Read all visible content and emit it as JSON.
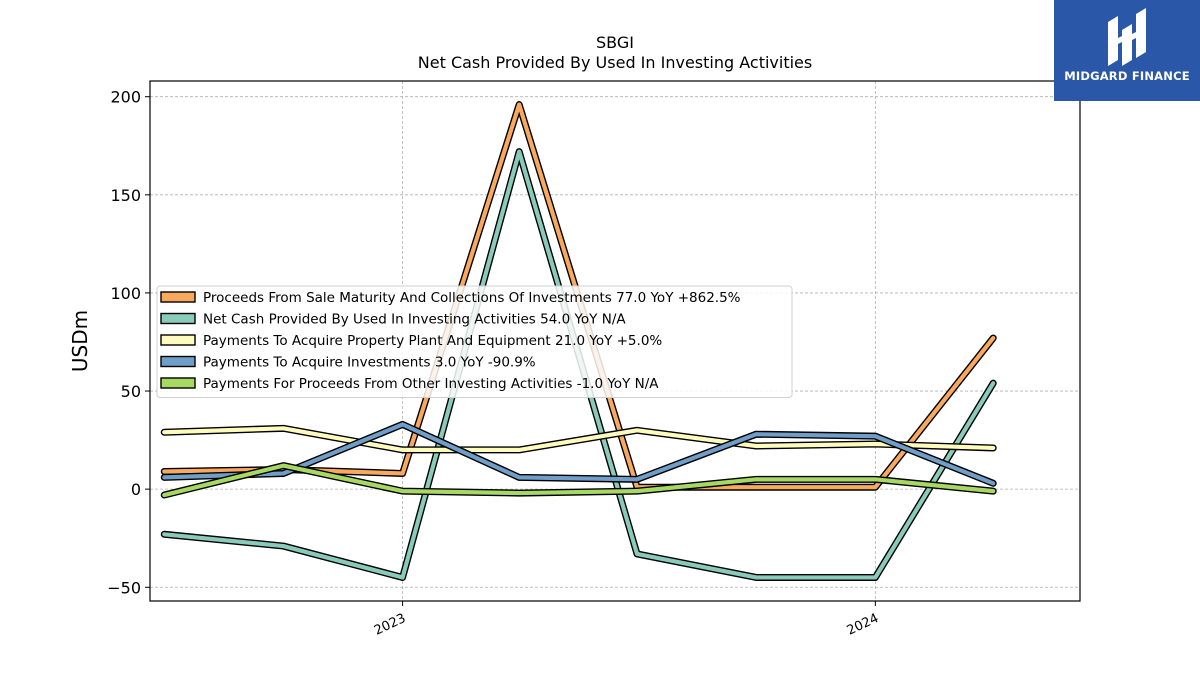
{
  "brand": {
    "name": "MIDGARD FINANCE",
    "bg_color": "#2a57a8"
  },
  "chart_data": {
    "type": "line",
    "title": "SBGI",
    "subtitle": "Net Cash Provided By Used In Investing Activities",
    "ylabel": "USDm",
    "xlabel": "",
    "ylim": [
      -57,
      208
    ],
    "yticks": [
      -50,
      0,
      50,
      100,
      150,
      200
    ],
    "ytick_labels": [
      "−50",
      "0",
      "50",
      "100",
      "150",
      "200"
    ],
    "x": [
      "2022-07-01",
      "2022-10-01",
      "2023-01-01",
      "2023-04-01",
      "2023-07-01",
      "2023-10-01",
      "2024-01-01",
      "2024-04-01"
    ],
    "xlim": [
      "2022-06-20",
      "2024-06-07"
    ],
    "xticks": [
      "2023-01-01",
      "2024-01-01"
    ],
    "xtick_labels": [
      "2023",
      "2024"
    ],
    "grid": true,
    "legend_position": "center-left",
    "series": [
      {
        "name": "Proceeds From Sale Maturity And Collections Of Investments  77.0 YoY +862.5%",
        "color": "#f9a95e",
        "values": [
          9,
          10,
          8,
          196,
          1,
          1,
          1,
          77
        ]
      },
      {
        "name": "Net Cash Provided By Used In Investing Activities  54.0 YoY N/A",
        "color": "#88cbbb",
        "values": [
          -23,
          -29,
          -45,
          172,
          -33,
          -45,
          -45,
          54
        ]
      },
      {
        "name": "Payments To Acquire Property Plant And Equipment  21.0 YoY +5.0%",
        "color": "#fefcbd",
        "values": [
          29,
          31,
          20,
          20,
          30,
          22,
          23,
          21
        ]
      },
      {
        "name": "Payments To Acquire Investments  3.0 YoY -90.9%",
        "color": "#6f9ec9",
        "values": [
          6,
          8,
          33,
          6,
          5,
          28,
          27,
          3
        ]
      },
      {
        "name": "Payments For Proceeds From Other Investing Activities  -1.0 YoY N/A",
        "color": "#a6d862",
        "values": [
          -3,
          12,
          -1,
          -2,
          -1,
          5,
          5,
          -1
        ]
      }
    ]
  }
}
